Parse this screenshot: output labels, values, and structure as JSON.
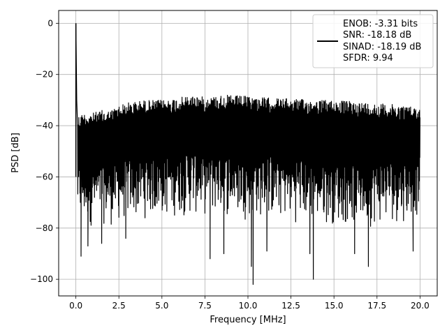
{
  "chart_data": {
    "type": "line",
    "xlabel": "Frequency [MHz]",
    "ylabel": "PSD [dB]",
    "xlim": [
      -1.0,
      21.0
    ],
    "ylim": [
      -106.5,
      5.0
    ],
    "x_ticks": [
      0.0,
      2.5,
      5.0,
      7.5,
      10.0,
      12.5,
      15.0,
      17.5,
      20.0
    ],
    "x_tick_labels": [
      "0.0",
      "2.5",
      "5.0",
      "7.5",
      "10.0",
      "12.5",
      "15.0",
      "17.5",
      "20.0"
    ],
    "y_ticks": [
      0,
      -20,
      -40,
      -60,
      -80,
      -100
    ],
    "y_tick_labels": [
      "0",
      "−20",
      "−40",
      "−60",
      "−80",
      "−100"
    ],
    "grid": true,
    "legend_position": "top-right",
    "legend_lines": [
      "ENOB: -3.31 bits",
      "SNR: -18.18 dB",
      "SINAD: -18.19 dB",
      "SFDR: 9.94"
    ],
    "series": [
      {
        "color": "#000000",
        "description_of_shape": "dense noise floor with single spike at 0 MHz",
        "peak": {
          "x": 0.0,
          "y": 0.0
        },
        "floor_start": {
          "x": 0.05,
          "y": -30
        },
        "upper_envelope": {
          "x": [
            0.1,
            0.5,
            1.0,
            1.5,
            2.0,
            2.5,
            3.0,
            4.0,
            5.0,
            6.0,
            7.0,
            7.5,
            8.5,
            10.0,
            11.0,
            12.5,
            14.0,
            15.0,
            16.0,
            17.0,
            18.0,
            19.0,
            20.0
          ],
          "y": [
            -36,
            -35,
            -35,
            -34,
            -34,
            -32,
            -31,
            -30,
            -30,
            -29,
            -28,
            -29,
            -28,
            -28.5,
            -29,
            -29.5,
            -30,
            -30,
            -30.5,
            -31,
            -31.5,
            -32,
            -33
          ]
        },
        "lower_envelope": {
          "x": [
            0.1,
            0.5,
            1.0,
            1.5,
            2.0,
            2.5,
            3.0,
            4.0,
            5.0,
            6.0,
            7.0,
            7.5,
            8.5,
            10.0,
            11.0,
            12.5,
            14.0,
            15.0,
            16.0,
            17.0,
            18.0,
            19.0,
            20.0
          ],
          "y": [
            -78,
            -80,
            -80,
            -79,
            -80,
            -79,
            -78,
            -77,
            -77,
            -76,
            -76,
            -76,
            -76,
            -77,
            -77,
            -78,
            -79,
            -79,
            -80,
            -80,
            -79,
            -78,
            -76
          ]
        },
        "deep_nulls": [
          {
            "x": 0.3,
            "y": -91
          },
          {
            "x": 0.7,
            "y": -87
          },
          {
            "x": 1.5,
            "y": -86
          },
          {
            "x": 2.9,
            "y": -84
          },
          {
            "x": 7.8,
            "y": -92
          },
          {
            "x": 8.6,
            "y": -90
          },
          {
            "x": 10.2,
            "y": -95
          },
          {
            "x": 10.3,
            "y": -102
          },
          {
            "x": 11.1,
            "y": -89
          },
          {
            "x": 13.6,
            "y": -90
          },
          {
            "x": 13.8,
            "y": -100
          },
          {
            "x": 16.2,
            "y": -90
          },
          {
            "x": 17.0,
            "y": -95
          },
          {
            "x": 19.6,
            "y": -89
          }
        ]
      }
    ]
  }
}
